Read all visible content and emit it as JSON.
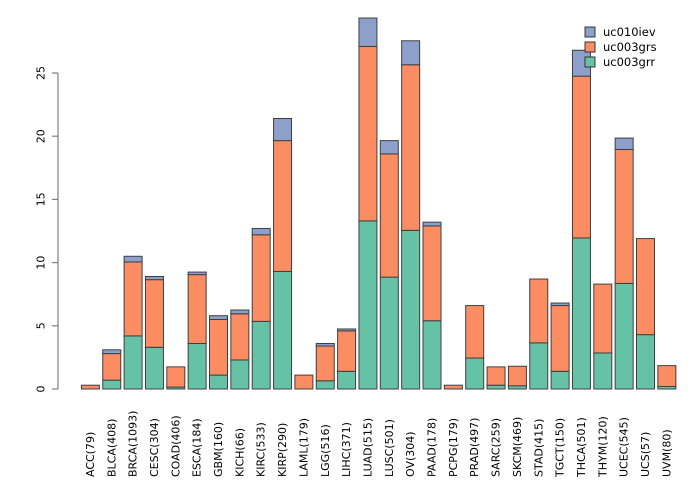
{
  "figure": {
    "kind": "stacked-bar-plot",
    "background": "#ffffff",
    "axis_color": "#808080",
    "bar_border_color": "#3f3f3f",
    "text_color": "#000000"
  },
  "legend": {
    "position": "top-right",
    "entries": [
      {
        "label": "uc010iev",
        "color": "#8DA0CB"
      },
      {
        "label": "uc003grs",
        "color": "#FC8D62"
      },
      {
        "label": "uc003grr",
        "color": "#66C2A5"
      }
    ]
  },
  "chart_data": {
    "type": "bar",
    "subtype": "stacked",
    "title": "",
    "xlabel": "",
    "ylabel": "",
    "ylim": [
      0,
      29.5
    ],
    "yticks": [
      0,
      5,
      10,
      15,
      20,
      25
    ],
    "grid": false,
    "categories": [
      "ACC(79)",
      "BLCA(408)",
      "BRCA(1093)",
      "CESC(304)",
      "COAD(406)",
      "ESCA(184)",
      "GBM(160)",
      "KICH(66)",
      "KIRC(533)",
      "KIRP(290)",
      "LAML(179)",
      "LGG(516)",
      "LIHC(371)",
      "LUAD(515)",
      "LUSC(501)",
      "OV(304)",
      "PAAD(178)",
      "PCPG(179)",
      "PRAD(497)",
      "SARC(259)",
      "SKCM(469)",
      "STAD(415)",
      "TGCT(150)",
      "THCA(501)",
      "THYM(120)",
      "UCEC(545)",
      "UCS(57)",
      "UVM(80)"
    ],
    "series": [
      {
        "name": "uc003grr",
        "color": "#66C2A5",
        "values": [
          0,
          0.7,
          4.2,
          3.3,
          0.15,
          3.6,
          1.1,
          2.3,
          5.35,
          9.3,
          0,
          0.65,
          1.4,
          13.3,
          8.85,
          12.55,
          5.4,
          0,
          2.45,
          0.3,
          0.25,
          3.65,
          1.4,
          11.95,
          2.85,
          8.35,
          4.3,
          0.2
        ]
      },
      {
        "name": "uc003grs",
        "color": "#FC8D62",
        "values": [
          0.3,
          2.1,
          5.85,
          5.35,
          1.6,
          5.45,
          4.4,
          3.65,
          6.85,
          10.35,
          1.1,
          2.75,
          3.2,
          13.8,
          9.75,
          13.1,
          7.5,
          0.3,
          4.15,
          1.45,
          1.55,
          5.05,
          5.2,
          12.8,
          5.45,
          10.6,
          7.6,
          1.65
        ]
      },
      {
        "name": "uc010iev",
        "color": "#8DA0CB",
        "values": [
          0,
          0.3,
          0.45,
          0.25,
          0,
          0.2,
          0.3,
          0.3,
          0.5,
          1.75,
          0,
          0.2,
          0.15,
          2.25,
          1.05,
          1.9,
          0.3,
          0,
          0,
          0,
          0,
          0,
          0.2,
          2.05,
          0,
          0.9,
          0,
          0
        ]
      }
    ]
  }
}
